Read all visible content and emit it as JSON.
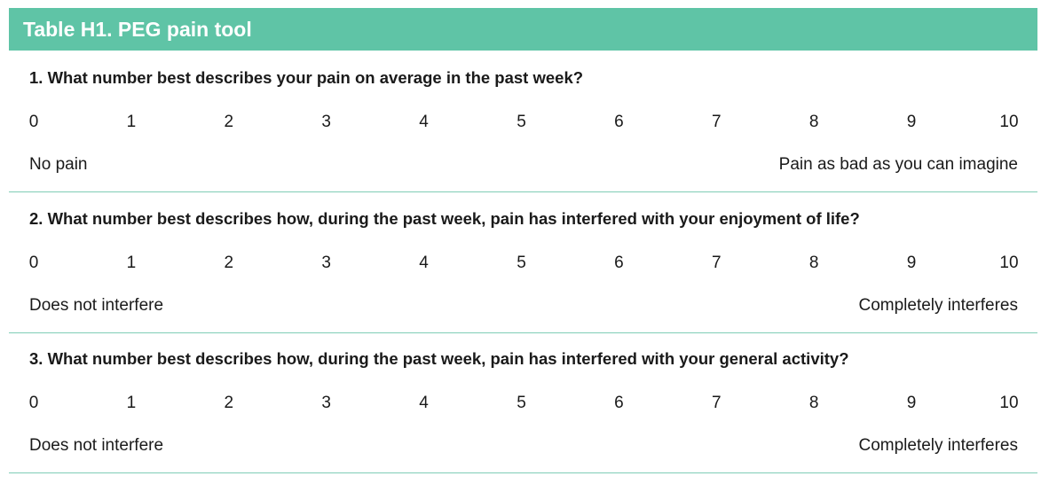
{
  "title": "Table H1. PEG pain tool",
  "colors": {
    "header": "#5fc4a6",
    "divider": "#7fcdb6"
  },
  "scale": [
    "0",
    "1",
    "2",
    "3",
    "4",
    "5",
    "6",
    "7",
    "8",
    "9",
    "10"
  ],
  "questions": [
    {
      "text": "1. What number best describes your pain on average in the past week?",
      "low": "No pain",
      "high": "Pain as bad as you can imagine"
    },
    {
      "text": "2. What number best describes how, during the past week, pain has interfered with your enjoyment of life?",
      "low": "Does not interfere",
      "high": "Completely interferes"
    },
    {
      "text": "3. What number best describes how, during the past week, pain has interfered with your general activity?",
      "low": "Does not interfere",
      "high": "Completely interferes"
    }
  ]
}
